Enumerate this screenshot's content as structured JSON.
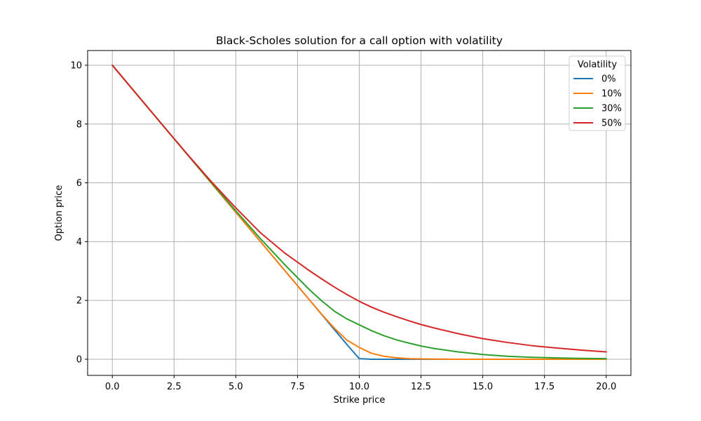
{
  "chart_data": {
    "type": "line",
    "title": "Black-Scholes solution for a call option with volatility",
    "xlabel": "Strike price",
    "ylabel": "Option price",
    "xlim": [
      -1.0,
      21.0
    ],
    "ylim": [
      -0.55,
      10.5
    ],
    "xticks": [
      0.0,
      2.5,
      5.0,
      7.5,
      10.0,
      12.5,
      15.0,
      17.5,
      20.0
    ],
    "xtick_labels": [
      "0.0",
      "2.5",
      "5.0",
      "7.5",
      "10.0",
      "12.5",
      "15.0",
      "17.5",
      "20.0"
    ],
    "yticks": [
      0,
      2,
      4,
      6,
      8,
      10
    ],
    "ytick_labels": [
      "0",
      "2",
      "4",
      "6",
      "8",
      "10"
    ],
    "grid": true,
    "legend": {
      "title": "Volatility",
      "placement": "top-right"
    },
    "x": [
      0,
      1,
      2,
      3,
      4,
      5,
      6,
      7,
      8,
      8.5,
      9,
      9.5,
      10,
      10.5,
      11,
      11.5,
      12,
      12.5,
      13,
      14,
      15,
      16,
      17,
      18,
      19,
      20
    ],
    "series": [
      {
        "name": "0%",
        "color": "#1f77b4",
        "values": [
          10,
          9,
          8,
          7,
          6,
          5,
          4,
          3,
          2,
          1.5,
          1,
          0.5,
          0.02,
          0,
          0,
          0,
          0,
          0,
          0,
          0,
          0,
          0,
          0,
          0,
          0,
          0
        ]
      },
      {
        "name": "10%",
        "color": "#ff7f0e",
        "values": [
          10,
          9,
          8,
          7,
          6,
          5,
          4,
          3,
          2,
          1.51,
          1.05,
          0.65,
          0.4,
          0.2,
          0.1,
          0.05,
          0.02,
          0.01,
          0.005,
          0,
          0,
          0,
          0,
          0,
          0,
          0
        ]
      },
      {
        "name": "30%",
        "color": "#2ca02c",
        "values": [
          10,
          9,
          8,
          7,
          6.02,
          5.05,
          4.1,
          3.2,
          2.35,
          1.97,
          1.63,
          1.37,
          1.17,
          0.97,
          0.8,
          0.66,
          0.55,
          0.45,
          0.37,
          0.25,
          0.16,
          0.1,
          0.065,
          0.045,
          0.03,
          0.02
        ]
      },
      {
        "name": "50%",
        "color": "#d62728",
        "values": [
          10,
          9,
          8,
          7.01,
          6.05,
          5.15,
          4.3,
          3.6,
          3.0,
          2.72,
          2.45,
          2.2,
          1.97,
          1.77,
          1.6,
          1.45,
          1.31,
          1.18,
          1.07,
          0.87,
          0.7,
          0.57,
          0.46,
          0.38,
          0.31,
          0.25
        ]
      }
    ],
    "colors": {
      "grid": "#b0b0b0",
      "axes": "#000000",
      "legend_border": "#cccccc",
      "background": "#ffffff"
    }
  }
}
